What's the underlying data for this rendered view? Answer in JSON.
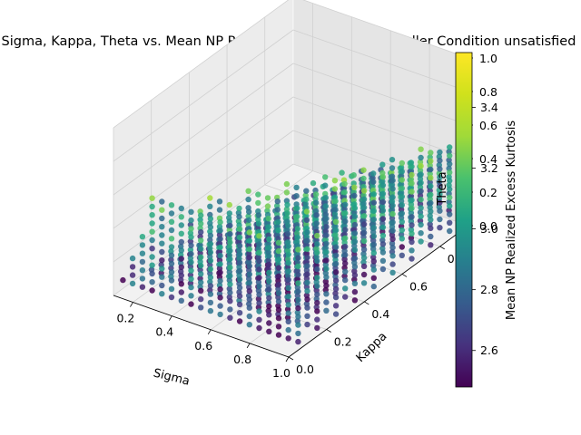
{
  "chart_data": {
    "type": "scatter",
    "projection": "3d",
    "title": "Sigma, Kappa, Theta vs. Mean NP Realized Excess Kurtosis. Feller Condition unsatisfied",
    "xlabel": "Sigma",
    "ylabel": "Kappa",
    "zlabel": "Theta",
    "xlim": [
      0.1,
      1.0
    ],
    "ylim": [
      0.0,
      0.95
    ],
    "zlim": [
      0.0,
      1.0
    ],
    "xticks": [
      "0.2",
      "0.4",
      "0.6",
      "0.8",
      "1.0"
    ],
    "yticks": [
      "0.0",
      "0.2",
      "0.4",
      "0.6",
      "0.8"
    ],
    "zticks": [
      "0.0",
      "0.2",
      "0.4",
      "0.6",
      "0.8",
      "1.0"
    ],
    "colorbar": {
      "label": "Mean NP Realized Excess Kurtosis",
      "range": [
        2.48,
        3.58
      ],
      "ticks": [
        "2.6",
        "2.8",
        "3.0",
        "3.2",
        "3.4"
      ],
      "colormap": "viridis"
    },
    "grid": true,
    "legend": "none",
    "points_note": "Grid of sampled parameters where 2*Kappa*Theta < Sigma^2; colour = mean excess kurtosis",
    "sigma_values": [
      0.1,
      0.15,
      0.2,
      0.25,
      0.3,
      0.35,
      0.4,
      0.45,
      0.5,
      0.55,
      0.6,
      0.65,
      0.7,
      0.75,
      0.8,
      0.85,
      0.9,
      0.95,
      1.0
    ],
    "kappa_values": [
      0.05,
      0.15,
      0.25,
      0.35,
      0.45,
      0.55,
      0.65,
      0.75,
      0.85,
      0.95
    ],
    "theta_values": [
      0.05,
      0.1,
      0.15,
      0.2,
      0.25,
      0.3,
      0.35,
      0.4,
      0.45,
      0.5,
      0.55,
      0.6
    ],
    "kurtosis_range": [
      2.48,
      3.58
    ]
  }
}
